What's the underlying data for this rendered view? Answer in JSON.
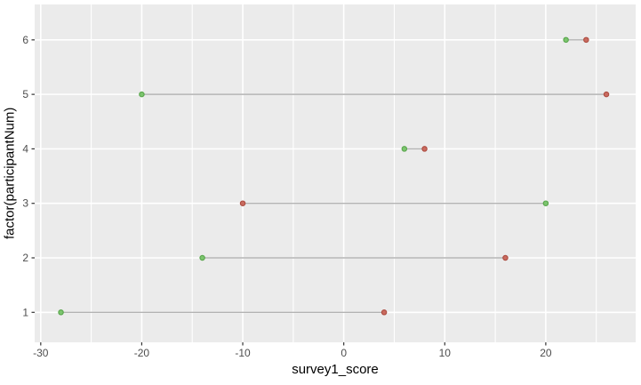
{
  "figure": {
    "kind": "ggplot2 dumbbell / Cleveland dot plot",
    "title": ""
  },
  "chart_data": {
    "type": "scatter",
    "variant": "dumbbell",
    "title": "",
    "xlabel": "survey1_score",
    "ylabel": "factor(participantNum)",
    "categories": [
      1,
      2,
      3,
      4,
      5,
      6
    ],
    "series": [
      {
        "name": "green",
        "fill": "#7CC56E",
        "stroke": "#58A54B",
        "values": [
          -28,
          -14,
          20,
          6,
          -20,
          22
        ]
      },
      {
        "name": "red",
        "fill": "#C96B60",
        "stroke": "#AC4B3F",
        "values": [
          4,
          16,
          -10,
          8,
          26,
          24
        ]
      }
    ],
    "segments": [
      {
        "y": 1,
        "x1": -28,
        "x2": 4
      },
      {
        "y": 2,
        "x1": -14,
        "x2": 16
      },
      {
        "y": 3,
        "x1": -10,
        "x2": 20
      },
      {
        "y": 4,
        "x1": 6,
        "x2": 8
      },
      {
        "y": 5,
        "x1": -20,
        "x2": 26
      },
      {
        "y": 6,
        "x1": 22,
        "x2": 24
      }
    ],
    "x_ticks_major": [
      -30,
      -20,
      -10,
      0,
      10,
      20
    ],
    "x_ticks_minor": [
      -25,
      -15,
      -5,
      5,
      15,
      25
    ],
    "y_ticks": [
      1,
      2,
      3,
      4,
      5,
      6
    ],
    "xlim": [
      -30.6,
      28.9
    ],
    "ylim": [
      0.45,
      6.65
    ],
    "legend": "none",
    "grid": "white major+minor vertical, white major horizontal, on grey panel",
    "colors": {
      "panel_bg": "#EBEBEB",
      "grid": "#FFFFFF",
      "connector": "#B3B3B3",
      "axis_tick": "#333333",
      "tick_label": "#4D4D4D",
      "axis_title": "#000000",
      "outer_bg": "#FFFFFF"
    }
  }
}
